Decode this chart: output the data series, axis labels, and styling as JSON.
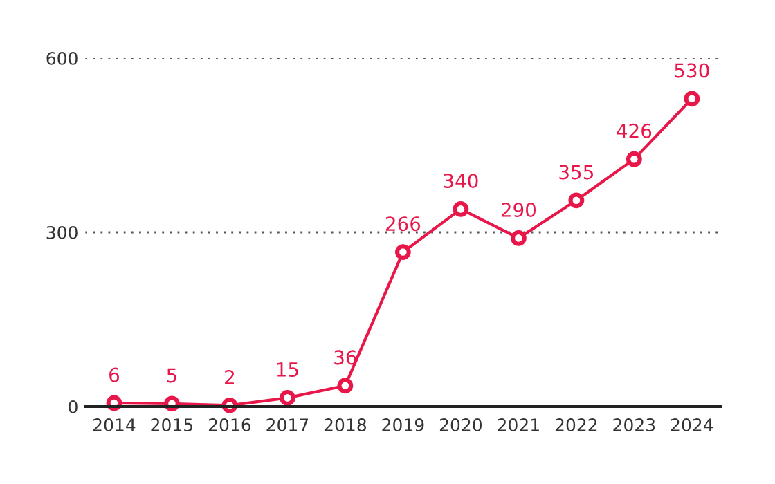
{
  "chart_data": {
    "type": "line",
    "categories": [
      "2014",
      "2015",
      "2016",
      "2017",
      "2018",
      "2019",
      "2020",
      "2021",
      "2022",
      "2023",
      "2024"
    ],
    "series": [
      {
        "color": "#e8174a",
        "values": [
          6,
          5,
          2,
          15,
          36,
          266,
          340,
          290,
          355,
          426,
          530
        ]
      }
    ],
    "ylim": [
      0,
      600
    ],
    "yticks": [
      0,
      300,
      600
    ],
    "grid": "y",
    "marker": "circle",
    "line_style": "solid",
    "data_labels": true
  }
}
